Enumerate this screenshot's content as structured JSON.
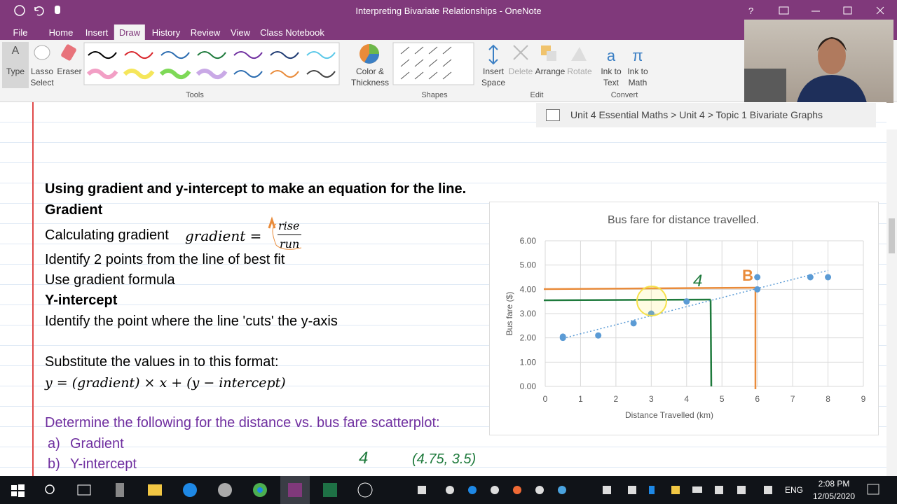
{
  "window": {
    "title": "Interpreting Bivariate Relationships - OneNote",
    "help": "?"
  },
  "menu_tabs": [
    "File",
    "Home",
    "Insert",
    "Draw",
    "History",
    "Review",
    "View",
    "Class Notebook"
  ],
  "ribbon": {
    "tools": [
      "Type",
      "Lasso",
      "Select",
      "Eraser"
    ],
    "color": [
      "Color &",
      "Thickness"
    ],
    "edit": [
      "Insert",
      "Space",
      "Delete",
      "Arrange",
      "Rotate"
    ],
    "convert": [
      "Ink to",
      "Text",
      "Ink to",
      "Math"
    ],
    "groups": [
      "Tools",
      "Shapes",
      "Edit",
      "Convert"
    ]
  },
  "breadcrumb": "Unit 4 Essential Maths > Unit 4 > Topic 1 Bivariate Graphs",
  "note": {
    "heading": "Using gradient and y-intercept to make an equation for the line.",
    "gradient_heading": "Gradient",
    "calc_label": "Calculating gradient",
    "formula_lhs": "gradient =",
    "numerator": "rise",
    "denominator": "run",
    "identify_points": "Identify 2 points from the line of best fit",
    "use_formula": "Use gradient formula",
    "intercept_heading": "Y-intercept",
    "identify_cut": "Identify the point where the line 'cuts' the y-axis",
    "substitute": "Substitute the values in to this format:",
    "equation": "y = (gradient)  × x + (y − intercept)",
    "task": "Determine the following for the distance vs. bus fare scatterplot:",
    "items": [
      "a)",
      "Gradient",
      "b)",
      "Y-intercept"
    ]
  },
  "chart": {
    "type": "scatter",
    "title": "Bus fare for distance travelled.",
    "x_label": "Distance Travelled (km)",
    "y_label": "Bus fare ($)",
    "xlim": [
      0,
      9
    ],
    "ylim": [
      0,
      6
    ],
    "xticks": [
      0,
      1,
      2,
      3,
      4,
      5,
      6,
      7,
      8,
      9
    ],
    "yticks": [
      {
        "value": 0,
        "label": "0.00"
      },
      {
        "value": 1,
        "label": "1.00"
      },
      {
        "value": 2,
        "label": "2.00"
      },
      {
        "value": 3,
        "label": "3.00"
      },
      {
        "value": 4,
        "label": "4.00"
      },
      {
        "value": 5,
        "label": "5.00"
      },
      {
        "value": 6,
        "label": "6.00"
      }
    ],
    "grid": true,
    "series": [
      {
        "color": "#5b9bd5",
        "x": [
          0.5,
          0.5,
          1.5,
          2.5,
          3,
          4,
          6,
          6,
          7.5,
          8
        ],
        "y": [
          2.0,
          2.05,
          2.1,
          2.6,
          3.0,
          3.5,
          4.5,
          4.0,
          4.5,
          4.5
        ]
      }
    ],
    "trendline": {
      "color": "#5b9bd5",
      "x": [
        0.5,
        8
      ],
      "y": [
        1.98,
        4.78
      ]
    }
  },
  "ink": [
    "4",
    "B",
    "4",
    "(4.75, 3.5)"
  ],
  "taskbar": {
    "language": "ENG",
    "time": "2:08 PM",
    "date": "12/05/2020"
  }
}
